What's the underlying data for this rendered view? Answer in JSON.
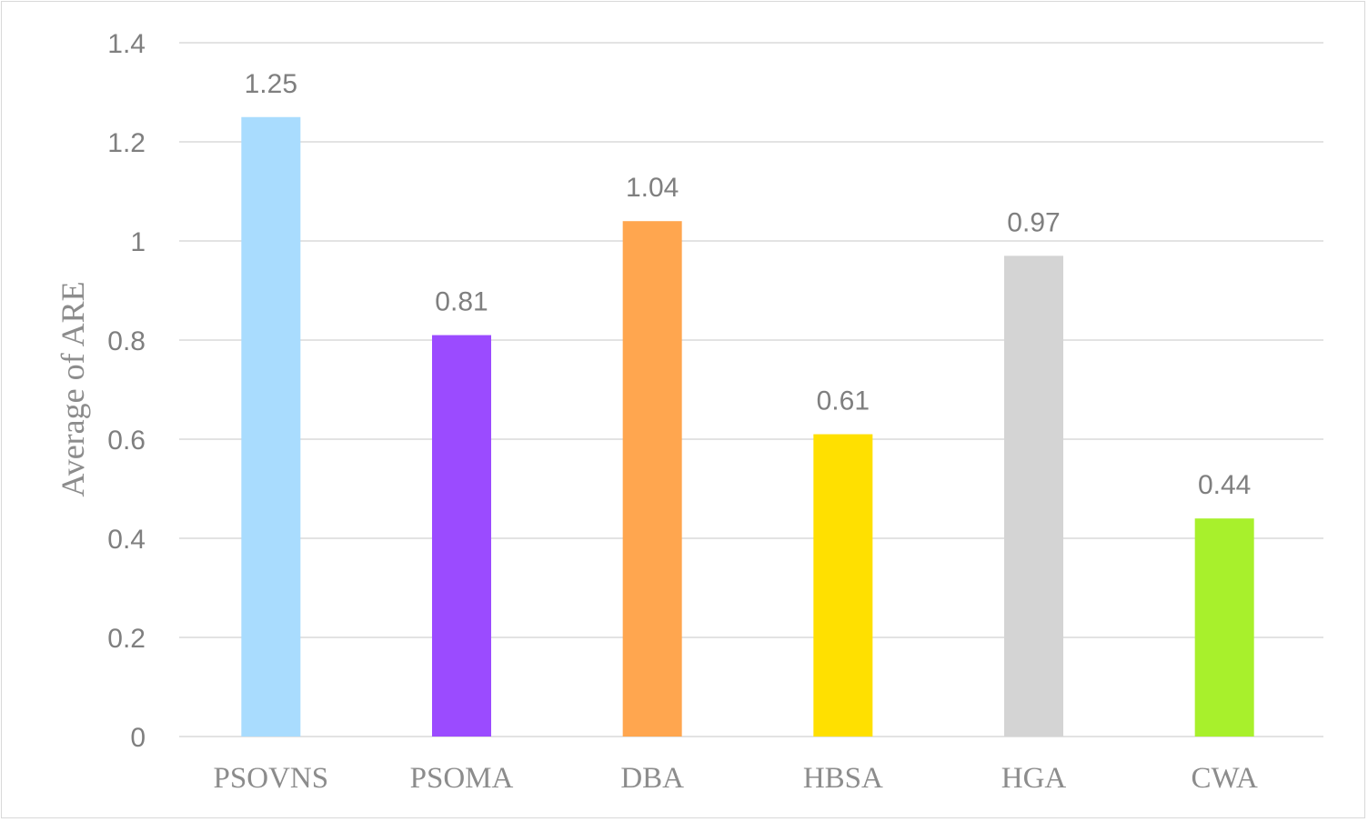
{
  "chart_data": {
    "type": "bar",
    "title": "",
    "xlabel": "",
    "ylabel": "Average of ARE",
    "ylim": [
      0,
      1.4
    ],
    "yticks": [
      "0",
      "0.2",
      "0.4",
      "0.6",
      "0.8",
      "1",
      "1.2",
      "1.4"
    ],
    "grid": true,
    "categories": [
      "PSOVNS",
      "PSOMA",
      "DBA",
      "HBSA",
      "HGA",
      "CWA"
    ],
    "values": [
      1.25,
      0.81,
      1.04,
      0.61,
      0.97,
      0.44
    ],
    "data_labels": [
      "1.25",
      "0.81",
      "1.04",
      "0.61",
      "0.97",
      "0.44"
    ],
    "colors": [
      "#A9DCFE",
      "#9B4BFF",
      "#FFA64F",
      "#FFE000",
      "#D4D4D4",
      "#A8F02C"
    ]
  }
}
